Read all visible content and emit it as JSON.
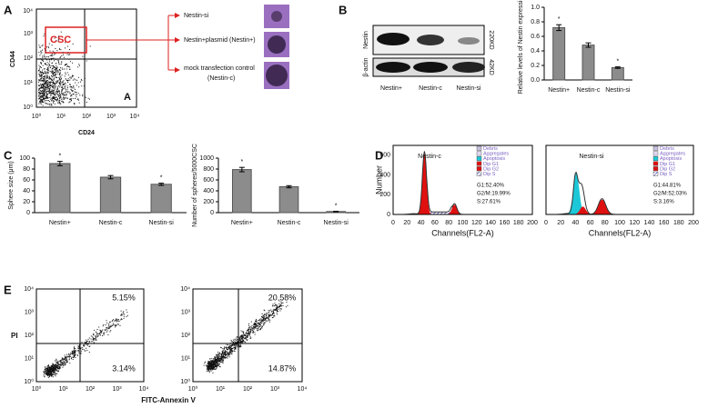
{
  "panel_labels": [
    "A",
    "B",
    "C",
    "D",
    "E"
  ],
  "panel_a": {
    "y_label": "CD44",
    "x_label": "CD24",
    "ticks": [
      "10⁰",
      "10¹",
      "10²",
      "10³",
      "10⁴"
    ],
    "gate": "CSC",
    "plot_tag": "A",
    "arrows": [
      "Nestin-si",
      "Nestin+plasmid (Nestin+)",
      "mock transfection control",
      "(Nestin-c)"
    ]
  },
  "panel_b_blot": {
    "rows": [
      "Nestin",
      "β-actin"
    ],
    "sizes": [
      "220KD",
      "42KD"
    ],
    "lanes": [
      "Nestin+",
      "Nestin-c",
      "Nestin-si"
    ]
  },
  "panel_d": {
    "x_label": "Channels(FL2-A)",
    "y_label": "Number",
    "x_ticks": [
      "0",
      "20",
      "40",
      "60",
      "80",
      "100",
      "120",
      "140",
      "160",
      "180",
      "200"
    ],
    "y_ticks": [
      "0",
      "200",
      "400",
      "600"
    ],
    "legend": [
      "Debris",
      "Aggregates",
      "Apoptosis",
      "Dip G1",
      "Dip G2",
      "Dip S"
    ],
    "plots": [
      {
        "title": "Nestin-c",
        "stats": [
          "G1:52.40%",
          "G2/M:19.99%",
          "S:27.61%"
        ]
      },
      {
        "title": "Nestin-si",
        "stats": [
          "G1:44.81%",
          "G2/M:52.03%",
          "S:3.16%"
        ]
      }
    ]
  },
  "panel_e": {
    "y_label": "PI",
    "x_label": "FITC-Annexin V",
    "ticks": [
      "10⁰",
      "10¹",
      "10²",
      "10³",
      "10⁴"
    ],
    "plots": [
      {
        "upper": "5.15%",
        "lower": "3.14%"
      },
      {
        "upper": "20.58%",
        "lower": "14.87%"
      }
    ]
  },
  "chart_data": [
    {
      "type": "bar",
      "y_label": "Relative levels of Nestin expression",
      "categories": [
        "Nestin+",
        "Nestin-c",
        "Nestin-si"
      ],
      "values": [
        0.72,
        0.48,
        0.17
      ],
      "errors": [
        0.04,
        0.03,
        0.01
      ],
      "annotations": [
        "*",
        null,
        "*"
      ],
      "color": "#8c8c8c",
      "ylim": [
        0,
        1
      ],
      "yticks": [
        {
          "value": 0,
          "label": "0.0"
        },
        0.2,
        0.4,
        0.6,
        0.8,
        {
          "value": 1,
          "label": "1.0"
        }
      ]
    },
    {
      "type": "bar",
      "y_label": "Sphere size (μm)",
      "categories": [
        "Nestin+",
        "Nestin-c",
        "Nestin-si"
      ],
      "values": [
        90,
        65,
        52
      ],
      "errors": [
        4,
        3,
        2
      ],
      "annotations": [
        "*",
        null,
        "*"
      ],
      "color": "#8c8c8c",
      "ylim": [
        0,
        100
      ],
      "yticks": [
        0,
        20,
        40,
        60,
        80,
        100
      ]
    },
    {
      "type": "bar",
      "y_label": "Number of spheres/5000CSC",
      "categories": [
        "Nestin+",
        "Nestin-c",
        "Nestin-si"
      ],
      "values": [
        790,
        475,
        20
      ],
      "errors": [
        40,
        20,
        5
      ],
      "annotations": [
        "*",
        null,
        "*"
      ],
      "color": "#8c8c8c",
      "ylim": [
        0,
        1000
      ],
      "yticks": [
        0,
        200,
        400,
        600,
        800,
        1000
      ]
    }
  ]
}
